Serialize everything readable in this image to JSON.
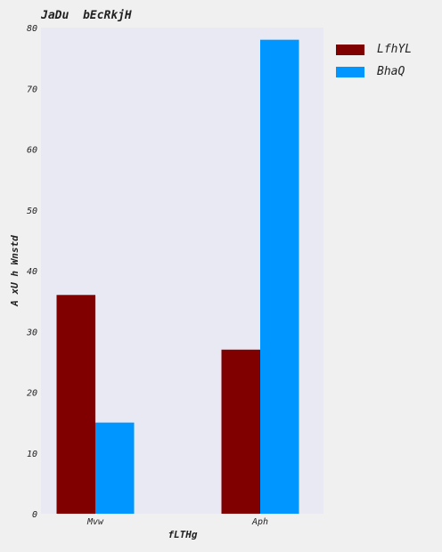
{
  "chart_data": {
    "type": "bar",
    "title": "JaDu  bEcRkjH",
    "xlabel": "fLTHg",
    "ylabel": "A xU  h Wnstd",
    "categories": [
      "Mvw",
      "Aph"
    ],
    "series": [
      {
        "name": "LfhYL",
        "values": [
          36,
          27
        ],
        "color": "#800000"
      },
      {
        "name": "BhaQ",
        "values": [
          15,
          78
        ],
        "color": "#0096ff"
      }
    ],
    "ylim": [
      0,
      80
    ],
    "yticks": [
      0,
      10,
      20,
      30,
      40,
      50,
      60,
      70,
      80
    ],
    "legend_position": "outside-right-top",
    "grid": false,
    "plot_background": "#e9e9f3"
  }
}
